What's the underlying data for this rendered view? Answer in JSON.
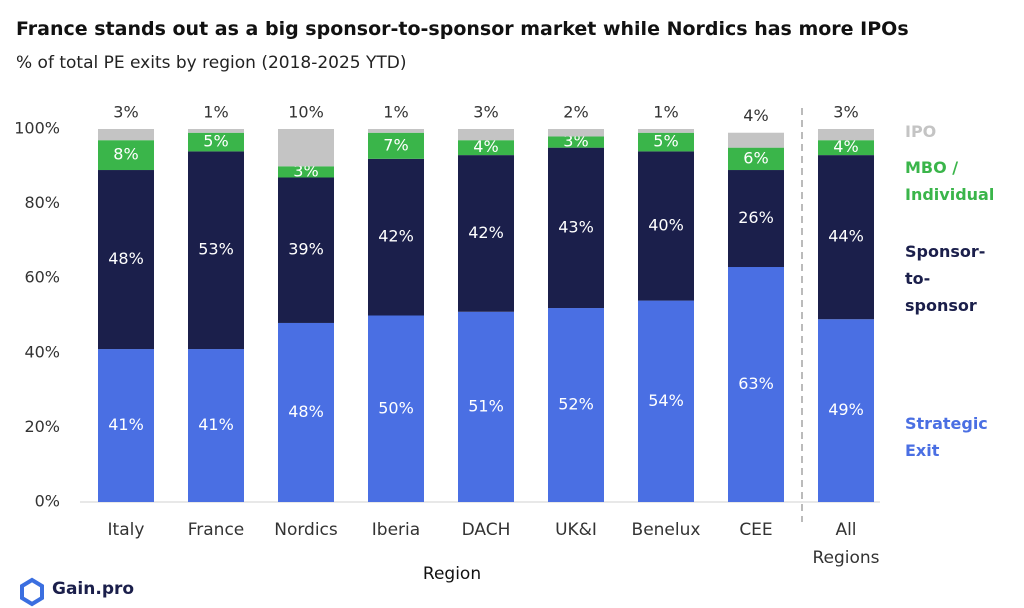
{
  "chart_data": {
    "type": "stacked_bar",
    "title": "France stands out as a big sponsor-to-sponsor market while Nordics has more IPOs",
    "subtitle": "% of total PE exits by region (2018-2025 YTD)",
    "x_label": "Region",
    "categories": [
      "Italy",
      "France",
      "Nordics",
      "Iberia",
      "DACH",
      "UK&I",
      "Benelux",
      "CEE",
      "All Regions"
    ],
    "series": [
      {
        "name": "Strategic Exit",
        "color": "#4a6fe3",
        "values": [
          41,
          41,
          48,
          50,
          51,
          52,
          54,
          63,
          49
        ],
        "value_labels": [
          "41%",
          "41%",
          "48%",
          "50%",
          "51%",
          "52%",
          "54%",
          "63%",
          "49%"
        ]
      },
      {
        "name": "Sponsor-to- sponsor",
        "color": "#1b1f4b",
        "values": [
          48,
          53,
          39,
          42,
          42,
          43,
          40,
          26,
          44
        ],
        "value_labels": [
          "48%",
          "53%",
          "39%",
          "42%",
          "42%",
          "43%",
          "40%",
          "26%",
          "44%"
        ]
      },
      {
        "name": "MBO / Individual",
        "color": "#3ab54a",
        "values": [
          8,
          5,
          3,
          7,
          4,
          3,
          5,
          6,
          4
        ],
        "value_labels": [
          "8%",
          "5%",
          "3%",
          "7%",
          "4%",
          "3%",
          "5%",
          "6%",
          "4%"
        ]
      },
      {
        "name": "IPO",
        "color": "#c4c4c4",
        "values": [
          3,
          1,
          10,
          1,
          3,
          2,
          1,
          4,
          3
        ],
        "value_labels": [
          "3%",
          "1%",
          "10%",
          "1%",
          "3%",
          "2%",
          "1%",
          "4%",
          "3%"
        ]
      }
    ],
    "ylim": [
      0,
      100
    ],
    "yticks": [
      {
        "value": 0,
        "label": "0%"
      },
      {
        "value": 20,
        "label": "20%"
      },
      {
        "value": 40,
        "label": "40%"
      },
      {
        "value": 60,
        "label": "60%"
      },
      {
        "value": 80,
        "label": "80%"
      },
      {
        "value": 100,
        "label": "100%"
      }
    ],
    "legend": "right"
  },
  "logo": "Gain.pro"
}
